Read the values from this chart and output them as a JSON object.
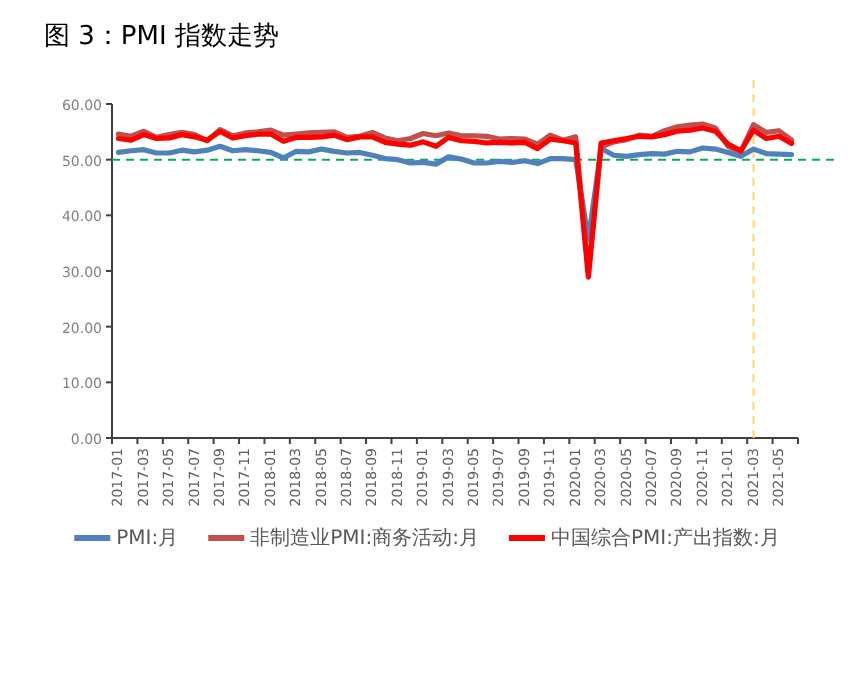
{
  "chart_data": {
    "type": "line",
    "title": "图 3：PMI 指数走势",
    "categories": [
      "2017-01",
      null,
      "2017-03",
      null,
      "2017-05",
      null,
      "2017-07",
      null,
      "2017-09",
      null,
      "2017-11",
      null,
      "2018-01",
      null,
      "2018-03",
      null,
      "2018-05",
      null,
      "2018-07",
      null,
      "2018-09",
      null,
      "2018-11",
      null,
      "2019-01",
      null,
      "2019-03",
      null,
      "2019-05",
      null,
      "2019-07",
      null,
      "2019-09",
      null,
      "2019-11",
      null,
      "2020-01",
      null,
      "2020-03",
      null,
      "2020-05",
      null,
      "2020-07",
      null,
      "2020-09",
      null,
      "2020-11",
      null,
      "2021-01",
      null,
      "2021-03",
      null,
      "2021-05",
      null
    ],
    "series": [
      {
        "name": "PMI:月",
        "color": "#4f81bd",
        "values": [
          51.3,
          51.6,
          51.8,
          51.2,
          51.2,
          51.7,
          51.4,
          51.7,
          52.4,
          51.6,
          51.8,
          51.6,
          51.3,
          50.3,
          51.5,
          51.4,
          51.9,
          51.5,
          51.2,
          51.3,
          50.8,
          50.2,
          50.0,
          49.4,
          49.5,
          49.2,
          50.5,
          50.1,
          49.4,
          49.4,
          49.7,
          49.5,
          49.8,
          49.3,
          50.2,
          50.2,
          50.0,
          35.7,
          52.0,
          50.8,
          50.6,
          50.9,
          51.1,
          51.0,
          51.5,
          51.4,
          52.1,
          51.9,
          51.3,
          50.6,
          51.9,
          51.1,
          51.0,
          50.9
        ]
      },
      {
        "name": "非制造业PMI:商务活动:月",
        "color": "#c0504d",
        "values": [
          54.6,
          54.2,
          55.1,
          54.0,
          54.5,
          54.9,
          54.5,
          53.4,
          55.4,
          54.3,
          54.8,
          55.0,
          55.3,
          54.4,
          54.6,
          54.8,
          54.9,
          55.0,
          54.0,
          54.2,
          54.9,
          53.9,
          53.4,
          53.8,
          54.7,
          54.3,
          54.8,
          54.3,
          54.3,
          54.2,
          53.7,
          53.8,
          53.7,
          52.8,
          54.4,
          53.5,
          54.1,
          29.6,
          52.3,
          53.2,
          53.6,
          54.4,
          54.2,
          55.2,
          55.9,
          56.2,
          56.4,
          55.7,
          52.4,
          51.4,
          56.3,
          54.9,
          55.2,
          53.5
        ]
      },
      {
        "name": "中国综合PMI:产出指数:月",
        "color": "#ff0000",
        "values": [
          53.8,
          53.5,
          54.5,
          53.8,
          53.9,
          54.5,
          54.1,
          53.5,
          55.1,
          53.9,
          54.3,
          54.6,
          54.6,
          53.3,
          54.0,
          54.0,
          54.1,
          54.4,
          53.6,
          54.1,
          54.1,
          53.1,
          52.8,
          52.6,
          53.2,
          52.4,
          54.0,
          53.4,
          53.3,
          53.0,
          53.1,
          53.0,
          53.1,
          52.0,
          53.7,
          53.4,
          53.0,
          28.9,
          53.0,
          53.4,
          53.8,
          54.2,
          54.1,
          54.5,
          55.1,
          55.3,
          55.7,
          55.1,
          52.8,
          51.6,
          55.3,
          53.8,
          54.2,
          52.9
        ]
      }
    ],
    "ylim": [
      0,
      60
    ],
    "yticks": [
      {
        "value": 0,
        "label": "0.00"
      },
      {
        "value": 10,
        "label": "10.00"
      },
      {
        "value": 20,
        "label": "20.00"
      },
      {
        "value": 30,
        "label": "30.00"
      },
      {
        "value": 40,
        "label": "40.00"
      },
      {
        "value": 50,
        "label": "50.00"
      },
      {
        "value": 60,
        "label": "60.00"
      }
    ],
    "ref_lines": [
      {
        "axis": "y",
        "value": 50,
        "color": "#00b050",
        "line_style": "dashed"
      },
      {
        "axis": "x",
        "value": "2021-03",
        "color": "#ffd966",
        "line_style": "dashed"
      }
    ],
    "legend": "bottom"
  }
}
